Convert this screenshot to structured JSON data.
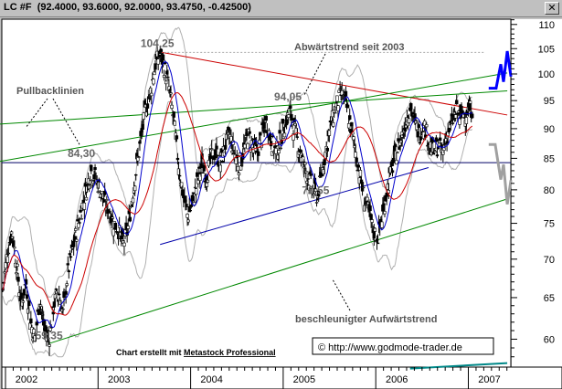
{
  "window": {
    "symbol_label": "LC #F",
    "quote_label": "(92.4000, 93.6000, 92.0000, 93.4750, -0.42500)",
    "close_glyph": "✕"
  },
  "annotations": {
    "pullback": "Pullbacklinien",
    "downtrend": "Abwärtstrend seit 2003",
    "uptrend": "beschleunigter Aufwärtstrend",
    "credit_prefix": "Chart erstellt mit",
    "credit_link": "Metastock Professional",
    "copyright": "© http://www.godmode-trader.de"
  },
  "colors": {
    "candles": "#000000",
    "ma_short": "#0000cc",
    "ma_long": "#cc0000",
    "bollinger": "#b0b0b0",
    "downtrend_line": "#cc0000",
    "pullback_lines": "#008800",
    "support_line": "#0000aa",
    "lower_channel": "#008888",
    "forecast_up": "#0000ff",
    "forecast_down": "#a0a0a0"
  },
  "chart_data": {
    "type": "candlestick",
    "instrument": "LC #F",
    "x_range": [
      2002.0,
      2007.5
    ],
    "ylim": [
      57,
      113
    ],
    "y_scale": "log",
    "yticks": [
      60,
      65,
      70,
      75,
      80,
      85,
      90,
      95,
      100,
      105,
      110
    ],
    "x_tick_labels": [
      "2002",
      "2003",
      "2004",
      "2005",
      "2006",
      "2007"
    ],
    "x_tick_positions": [
      2002,
      2003,
      2004,
      2005,
      2006,
      2007
    ],
    "legend": "none",
    "price_labels": [
      {
        "text": "104,25",
        "x": 2003.67,
        "y": 104.25
      },
      {
        "text": "94,05",
        "x": 2005.08,
        "y": 94.05
      },
      {
        "text": "84,30",
        "x": 2002.85,
        "y": 84.3
      },
      {
        "text": "78,55",
        "x": 2005.38,
        "y": 78.55
      },
      {
        "text": "59,35",
        "x": 2002.5,
        "y": 59.35
      }
    ],
    "horizontal_lines": [
      84.3,
      104.25
    ],
    "trendlines": [
      {
        "role": "downtrend",
        "from": [
          2003.72,
          104.25
        ],
        "to": [
          2007.45,
          92.4
        ]
      },
      {
        "role": "pullback",
        "from": [
          2001.97,
          84.5
        ],
        "to": [
          2007.45,
          100.2
        ]
      },
      {
        "role": "pullback",
        "from": [
          2001.97,
          90.8
        ],
        "to": [
          2007.45,
          96.8
        ]
      },
      {
        "role": "support",
        "from": [
          2003.7,
          72.0
        ],
        "to": [
          2006.6,
          83.5
        ]
      },
      {
        "role": "accelerated_uptrend",
        "from": [
          2002.5,
          59.5
        ],
        "to": [
          2007.45,
          78.6
        ]
      },
      {
        "role": "lower_channel",
        "from": [
          2006.4,
          56.7
        ],
        "to": [
          2007.45,
          57.3
        ]
      }
    ],
    "price_path": [
      [
        2002.0,
        66
      ],
      [
        2002.05,
        71
      ],
      [
        2002.1,
        74
      ],
      [
        2002.15,
        69
      ],
      [
        2002.2,
        64
      ],
      [
        2002.25,
        67
      ],
      [
        2002.3,
        62
      ],
      [
        2002.35,
        60
      ],
      [
        2002.4,
        65
      ],
      [
        2002.45,
        61
      ],
      [
        2002.5,
        60
      ],
      [
        2002.55,
        64
      ],
      [
        2002.6,
        66
      ],
      [
        2002.65,
        63
      ],
      [
        2002.7,
        68
      ],
      [
        2002.75,
        71
      ],
      [
        2002.8,
        74
      ],
      [
        2002.85,
        77
      ],
      [
        2002.9,
        80
      ],
      [
        2002.95,
        83
      ],
      [
        2003.0,
        82
      ],
      [
        2003.05,
        80
      ],
      [
        2003.1,
        78
      ],
      [
        2003.15,
        77
      ],
      [
        2003.2,
        75
      ],
      [
        2003.25,
        74
      ],
      [
        2003.3,
        72
      ],
      [
        2003.35,
        74
      ],
      [
        2003.4,
        79
      ],
      [
        2003.45,
        84
      ],
      [
        2003.5,
        89
      ],
      [
        2003.55,
        94
      ],
      [
        2003.6,
        97
      ],
      [
        2003.65,
        102
      ],
      [
        2003.7,
        104
      ],
      [
        2003.75,
        101
      ],
      [
        2003.8,
        97
      ],
      [
        2003.85,
        91
      ],
      [
        2003.9,
        84
      ],
      [
        2003.95,
        79
      ],
      [
        2004.0,
        76
      ],
      [
        2004.05,
        78
      ],
      [
        2004.1,
        81
      ],
      [
        2004.15,
        84
      ],
      [
        2004.2,
        82
      ],
      [
        2004.25,
        85
      ],
      [
        2004.3,
        86
      ],
      [
        2004.35,
        84
      ],
      [
        2004.4,
        87
      ],
      [
        2004.45,
        89
      ],
      [
        2004.5,
        86
      ],
      [
        2004.55,
        84
      ],
      [
        2004.6,
        86
      ],
      [
        2004.65,
        89
      ],
      [
        2004.7,
        87
      ],
      [
        2004.75,
        86
      ],
      [
        2004.8,
        89
      ],
      [
        2004.85,
        91
      ],
      [
        2004.9,
        88
      ],
      [
        2004.95,
        86
      ],
      [
        2005.0,
        88
      ],
      [
        2005.05,
        91
      ],
      [
        2005.1,
        93
      ],
      [
        2005.15,
        90
      ],
      [
        2005.2,
        87
      ],
      [
        2005.25,
        84
      ],
      [
        2005.3,
        82
      ],
      [
        2005.35,
        80
      ],
      [
        2005.4,
        79
      ],
      [
        2005.45,
        83
      ],
      [
        2005.5,
        87
      ],
      [
        2005.55,
        91
      ],
      [
        2005.6,
        94
      ],
      [
        2005.65,
        96
      ],
      [
        2005.7,
        95
      ],
      [
        2005.75,
        91
      ],
      [
        2005.8,
        87
      ],
      [
        2005.85,
        83
      ],
      [
        2005.9,
        79
      ],
      [
        2005.95,
        77
      ],
      [
        2006.0,
        74
      ],
      [
        2006.05,
        73
      ],
      [
        2006.1,
        76
      ],
      [
        2006.15,
        80
      ],
      [
        2006.2,
        83
      ],
      [
        2006.25,
        86
      ],
      [
        2006.3,
        88
      ],
      [
        2006.35,
        91
      ],
      [
        2006.4,
        94
      ],
      [
        2006.45,
        91
      ],
      [
        2006.5,
        89
      ],
      [
        2006.55,
        91
      ],
      [
        2006.6,
        88
      ],
      [
        2006.65,
        86
      ],
      [
        2006.7,
        87
      ],
      [
        2006.75,
        86
      ],
      [
        2006.8,
        89
      ],
      [
        2006.85,
        91
      ],
      [
        2006.9,
        93
      ],
      [
        2006.95,
        92
      ],
      [
        2007.0,
        93
      ],
      [
        2007.05,
        93.5
      ]
    ],
    "forecast_up": [
      [
        2007.25,
        97.3
      ],
      [
        2007.33,
        97.3
      ],
      [
        2007.38,
        101.9
      ],
      [
        2007.41,
        98.5
      ],
      [
        2007.45,
        104.5
      ],
      [
        2007.49,
        99.5
      ]
    ],
    "forecast_down": [
      [
        2007.25,
        87.3
      ],
      [
        2007.32,
        87.3
      ],
      [
        2007.38,
        81.6
      ],
      [
        2007.41,
        84.0
      ],
      [
        2007.45,
        77.8
      ],
      [
        2007.49,
        81.5
      ]
    ]
  }
}
